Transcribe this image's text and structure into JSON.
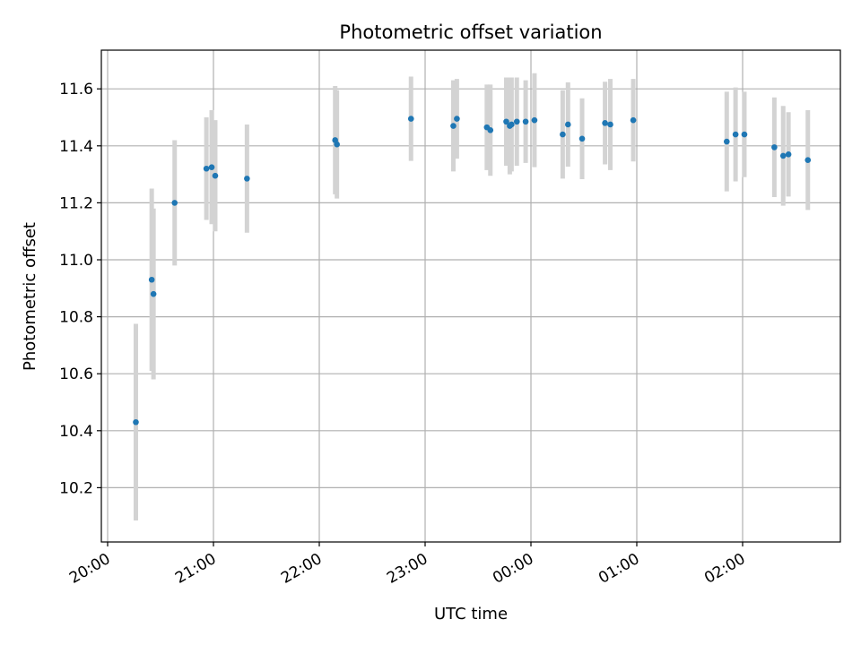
{
  "chart_data": {
    "type": "scatter",
    "title": "Photometric offset variation",
    "xlabel": "UTC time",
    "ylabel": "Photometric offset",
    "x_tick_labels": [
      "20:00",
      "21:00",
      "22:00",
      "23:00",
      "00:00",
      "01:00",
      "02:00"
    ],
    "y_tick_labels": [
      "10.2",
      "10.4",
      "10.6",
      "10.8",
      "11.0",
      "11.2",
      "11.4",
      "11.6"
    ],
    "grid": true,
    "legend": "none",
    "colors": {
      "points": "#1f77b4",
      "errorbars": "#d3d3d3",
      "grid": "#b0b0b0"
    },
    "series": [
      {
        "points": [
          {
            "time": "20:16",
            "y": 10.43,
            "yerr": 0.345
          },
          {
            "time": "20:25",
            "y": 10.93,
            "yerr": 0.32
          },
          {
            "time": "20:26",
            "y": 10.88,
            "yerr": 0.3
          },
          {
            "time": "20:38",
            "y": 11.2,
            "yerr": 0.22
          },
          {
            "time": "20:56",
            "y": 11.32,
            "yerr": 0.18
          },
          {
            "time": "20:59",
            "y": 11.325,
            "yerr": 0.2
          },
          {
            "time": "21:01",
            "y": 11.295,
            "yerr": 0.195
          },
          {
            "time": "21:19",
            "y": 11.285,
            "yerr": 0.19
          },
          {
            "time": "22:09",
            "y": 11.42,
            "yerr": 0.19
          },
          {
            "time": "22:10",
            "y": 11.405,
            "yerr": 0.19
          },
          {
            "time": "22:52",
            "y": 11.495,
            "yerr": 0.148
          },
          {
            "time": "23:16",
            "y": 11.47,
            "yerr": 0.16
          },
          {
            "time": "23:18",
            "y": 11.495,
            "yerr": 0.14
          },
          {
            "time": "23:35",
            "y": 11.465,
            "yerr": 0.15
          },
          {
            "time": "23:37",
            "y": 11.455,
            "yerr": 0.16
          },
          {
            "time": "23:46",
            "y": 11.485,
            "yerr": 0.155
          },
          {
            "time": "23:48",
            "y": 11.47,
            "yerr": 0.17
          },
          {
            "time": "23:49",
            "y": 11.475,
            "yerr": 0.165
          },
          {
            "time": "23:52",
            "y": 11.485,
            "yerr": 0.155
          },
          {
            "time": "23:57",
            "y": 11.485,
            "yerr": 0.145
          },
          {
            "time": "00:02",
            "y": 11.49,
            "yerr": 0.165
          },
          {
            "time": "00:18",
            "y": 11.44,
            "yerr": 0.155
          },
          {
            "time": "00:21",
            "y": 11.475,
            "yerr": 0.148
          },
          {
            "time": "00:29",
            "y": 11.425,
            "yerr": 0.142
          },
          {
            "time": "00:42",
            "y": 11.48,
            "yerr": 0.145
          },
          {
            "time": "00:45",
            "y": 11.475,
            "yerr": 0.16
          },
          {
            "time": "00:58",
            "y": 11.49,
            "yerr": 0.145
          },
          {
            "time": "01:51",
            "y": 11.415,
            "yerr": 0.175
          },
          {
            "time": "01:56",
            "y": 11.44,
            "yerr": 0.165
          },
          {
            "time": "02:01",
            "y": 11.44,
            "yerr": 0.15
          },
          {
            "time": "02:18",
            "y": 11.395,
            "yerr": 0.175
          },
          {
            "time": "02:23",
            "y": 11.365,
            "yerr": 0.175
          },
          {
            "time": "02:26",
            "y": 11.37,
            "yerr": 0.148
          },
          {
            "time": "02:37",
            "y": 11.35,
            "yerr": 0.175
          }
        ]
      }
    ]
  }
}
